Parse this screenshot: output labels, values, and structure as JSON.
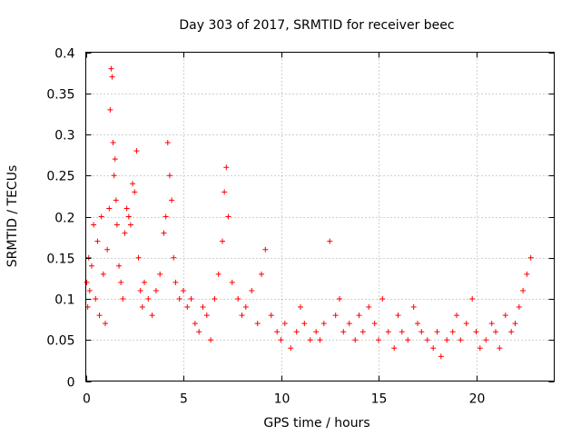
{
  "chart_data": {
    "type": "scatter",
    "title": "Day 303 of 2017, SRMTID for receiver beec",
    "xlabel": "GPS time / hours",
    "ylabel": "SRMTID / TECUs",
    "xlim": [
      0,
      24
    ],
    "ylim": [
      0,
      0.4
    ],
    "x_ticks": [
      0,
      5,
      10,
      15,
      20
    ],
    "x_tick_labels": [
      "0",
      "5",
      "10",
      "15",
      "20"
    ],
    "y_ticks": [
      0,
      0.05,
      0.1,
      0.15,
      0.2,
      0.25,
      0.3,
      0.35,
      0.4
    ],
    "y_tick_labels": [
      "0",
      "0.05",
      "0.1",
      "0.15",
      "0.2",
      "0.25",
      "0.3",
      "0.35",
      "0.4"
    ],
    "grid": true,
    "marker": "+",
    "point_color": "#ff0000",
    "series": [
      {
        "name": "SRMTID",
        "x": [
          0.05,
          0.1,
          0.15,
          0.2,
          0.3,
          0.4,
          0.5,
          0.6,
          0.7,
          0.8,
          0.9,
          1.0,
          1.1,
          1.2,
          1.25,
          1.3,
          1.35,
          1.4,
          1.45,
          1.5,
          1.55,
          1.6,
          1.7,
          1.8,
          1.9,
          2.0,
          2.1,
          2.2,
          2.3,
          2.4,
          2.5,
          2.6,
          2.7,
          2.8,
          2.9,
          3.0,
          3.2,
          3.4,
          3.6,
          3.8,
          4.0,
          4.1,
          4.2,
          4.3,
          4.4,
          4.5,
          4.6,
          4.8,
          5.0,
          5.2,
          5.4,
          5.6,
          5.8,
          6.0,
          6.2,
          6.4,
          6.6,
          6.8,
          7.0,
          7.1,
          7.2,
          7.3,
          7.5,
          7.8,
          8.0,
          8.2,
          8.5,
          8.8,
          9.0,
          9.2,
          9.5,
          9.8,
          10.0,
          10.2,
          10.5,
          10.8,
          11.0,
          11.2,
          11.5,
          11.8,
          12.0,
          12.2,
          12.5,
          12.8,
          13.0,
          13.2,
          13.5,
          13.8,
          14.0,
          14.2,
          14.5,
          14.8,
          15.0,
          15.2,
          15.5,
          15.8,
          16.0,
          16.2,
          16.5,
          16.8,
          17.0,
          17.2,
          17.5,
          17.8,
          18.0,
          18.2,
          18.5,
          18.8,
          19.0,
          19.2,
          19.5,
          19.8,
          20.0,
          20.2,
          20.5,
          20.8,
          21.0,
          21.2,
          21.5,
          21.8,
          22.0,
          22.2,
          22.4,
          22.6,
          22.8
        ],
        "y": [
          0.12,
          0.09,
          0.15,
          0.11,
          0.14,
          0.19,
          0.1,
          0.17,
          0.08,
          0.2,
          0.13,
          0.07,
          0.16,
          0.21,
          0.33,
          0.38,
          0.37,
          0.29,
          0.25,
          0.27,
          0.22,
          0.19,
          0.14,
          0.12,
          0.1,
          0.18,
          0.21,
          0.2,
          0.19,
          0.24,
          0.23,
          0.28,
          0.15,
          0.11,
          0.09,
          0.12,
          0.1,
          0.08,
          0.11,
          0.13,
          0.18,
          0.2,
          0.29,
          0.25,
          0.22,
          0.15,
          0.12,
          0.1,
          0.11,
          0.09,
          0.1,
          0.07,
          0.06,
          0.09,
          0.08,
          0.05,
          0.1,
          0.13,
          0.17,
          0.23,
          0.26,
          0.2,
          0.12,
          0.1,
          0.08,
          0.09,
          0.11,
          0.07,
          0.13,
          0.16,
          0.08,
          0.06,
          0.05,
          0.07,
          0.04,
          0.06,
          0.09,
          0.07,
          0.05,
          0.06,
          0.05,
          0.07,
          0.17,
          0.08,
          0.1,
          0.06,
          0.07,
          0.05,
          0.08,
          0.06,
          0.09,
          0.07,
          0.05,
          0.1,
          0.06,
          0.04,
          0.08,
          0.06,
          0.05,
          0.09,
          0.07,
          0.06,
          0.05,
          0.04,
          0.06,
          0.03,
          0.05,
          0.06,
          0.08,
          0.05,
          0.07,
          0.1,
          0.06,
          0.04,
          0.05,
          0.07,
          0.06,
          0.04,
          0.08,
          0.06,
          0.07,
          0.09,
          0.11,
          0.13,
          0.15
        ]
      }
    ]
  }
}
